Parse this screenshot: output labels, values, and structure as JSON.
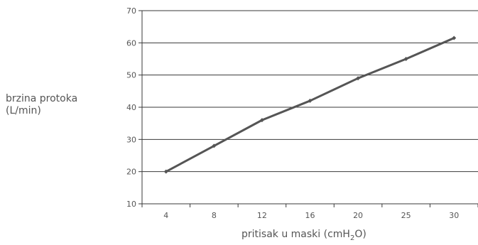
{
  "chart_data": {
    "type": "line",
    "categories": [
      "4",
      "8",
      "12",
      "16",
      "20",
      "25",
      "30"
    ],
    "series": [
      {
        "values": [
          20,
          28,
          36,
          42,
          49,
          55,
          61.5
        ],
        "color": "#555555"
      }
    ],
    "ylim": [
      10,
      70
    ],
    "yticks": [
      "10",
      "20",
      "30",
      "40",
      "50",
      "60",
      "70"
    ],
    "ylabel_line1": "brzina protoka",
    "ylabel_line2": "(L/min)",
    "xlabel_main": "pritisak u maski (cmH",
    "xlabel_sub": "2",
    "xlabel_end": "O)",
    "grid": true,
    "legend": "none"
  }
}
